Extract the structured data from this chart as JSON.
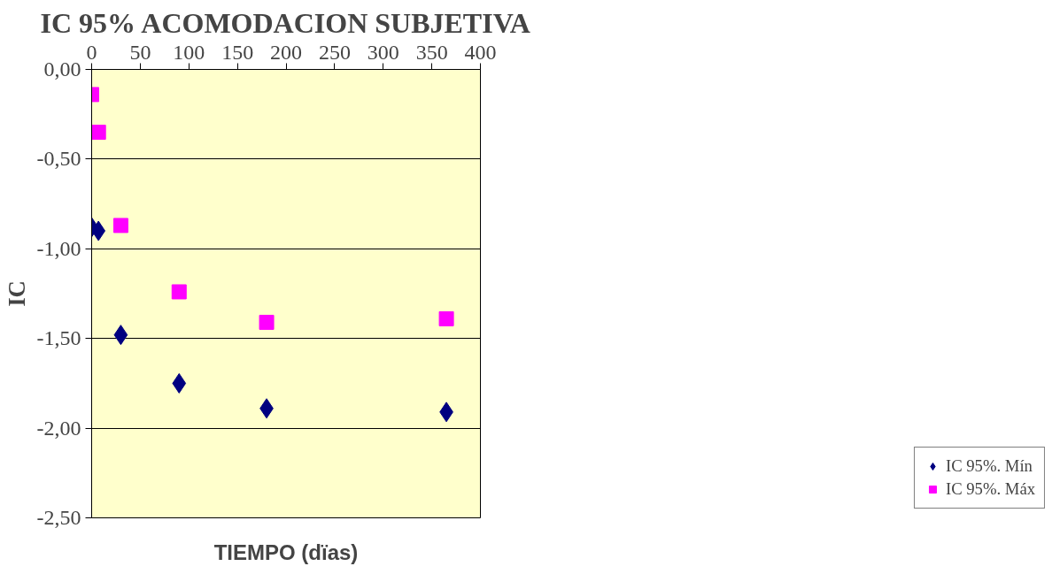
{
  "chart_data": {
    "type": "scatter",
    "title": "IC 95% ACOMODACION SUBJETIVA",
    "xlabel": "TIEMPO (dïas)",
    "ylabel": "IC",
    "x": [
      0,
      7,
      30,
      90,
      180,
      365
    ],
    "series": [
      {
        "name": "IC 95%. Mín",
        "color": "#000080",
        "marker": "diamond",
        "values": [
          -0.88,
          -0.9,
          -1.48,
          -1.75,
          -1.89,
          -1.91
        ]
      },
      {
        "name": "IC 95%. Máx",
        "color": "#ff00ff",
        "marker": "square",
        "values": [
          -0.14,
          -0.35,
          -0.87,
          -1.24,
          -1.41,
          -1.39
        ]
      }
    ],
    "xlim": [
      0,
      400
    ],
    "xticks": [
      0,
      50,
      100,
      150,
      200,
      250,
      300,
      350,
      400
    ],
    "ylim": [
      -2.5,
      0
    ],
    "yticks": [
      {
        "value": 0,
        "label": "0,00"
      },
      {
        "value": -0.5,
        "label": "-0,50"
      },
      {
        "value": -1,
        "label": "-1,00"
      },
      {
        "value": -1.5,
        "label": "-1,50"
      },
      {
        "value": -2,
        "label": "-2,00"
      },
      {
        "value": -2.5,
        "label": "-2,50"
      }
    ],
    "grid": "y",
    "legend": "bottom right"
  }
}
